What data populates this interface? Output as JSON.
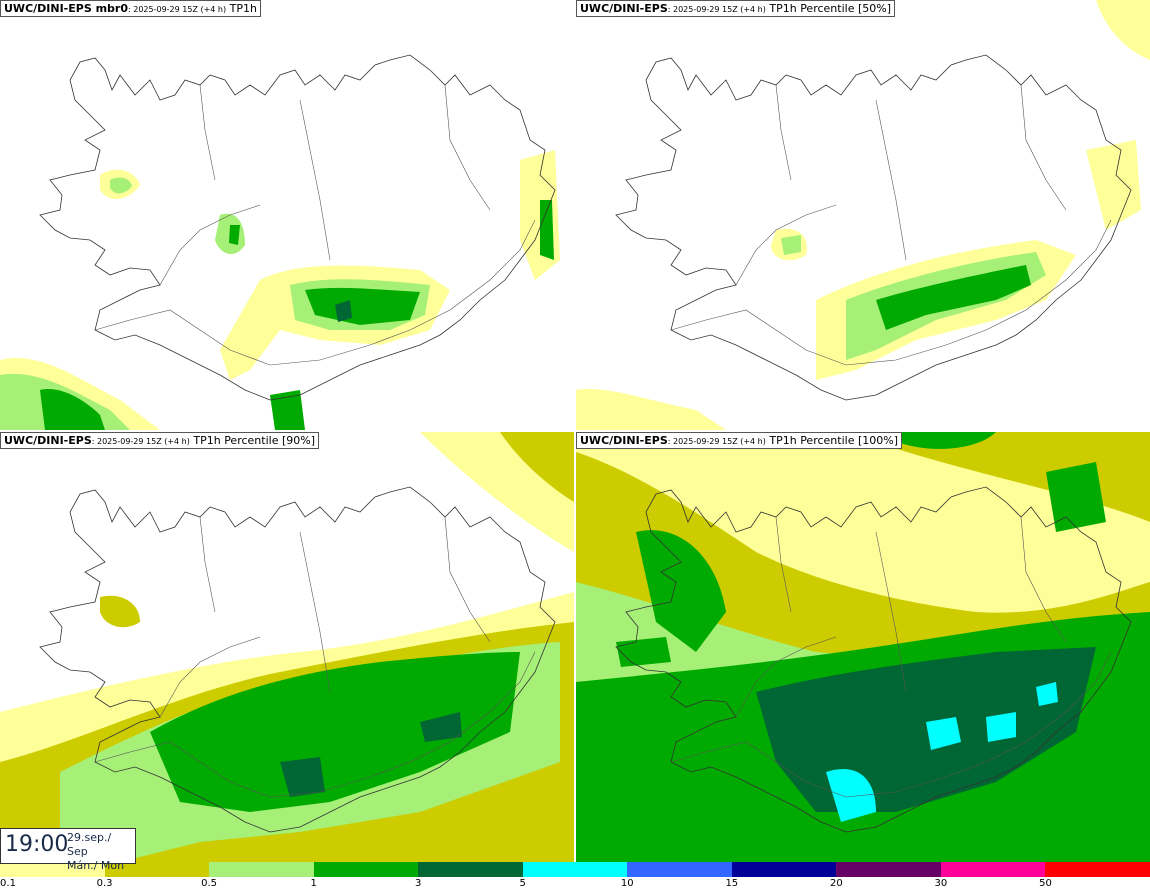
{
  "panels": [
    {
      "model": "UWC/DINI-EPS mbr0",
      "meta": ": 2025-09-29 15Z (+4 h)",
      "field": "TP1h"
    },
    {
      "model": "UWC/DINI-EPS",
      "meta": ": 2025-09-29 15Z (+4 h)",
      "field": "TP1h Percentile [50%]"
    },
    {
      "model": "UWC/DINI-EPS",
      "meta": ": 2025-09-29 15Z (+4 h)",
      "field": "TP1h Percentile [90%]"
    },
    {
      "model": "UWC/DINI-EPS",
      "meta": ": 2025-09-29 15Z (+4 h)",
      "field": "TP1h Percentile [100%]"
    }
  ],
  "timestamp": {
    "time": "19:00",
    "date_line1": "29.sep./ Sep",
    "date_line2": "Mán./ Mon"
  },
  "legend": {
    "colors": [
      "#ffff99",
      "#cccc00",
      "#a6f078",
      "#00aa00",
      "#006633",
      "#00ffff",
      "#3366ff",
      "#000099",
      "#660066",
      "#ff0099",
      "#ff0000"
    ],
    "ticks": [
      "0.1",
      "0.3",
      "0.5",
      "1",
      "3",
      "5",
      "10",
      "15",
      "20",
      "30",
      "50"
    ]
  }
}
